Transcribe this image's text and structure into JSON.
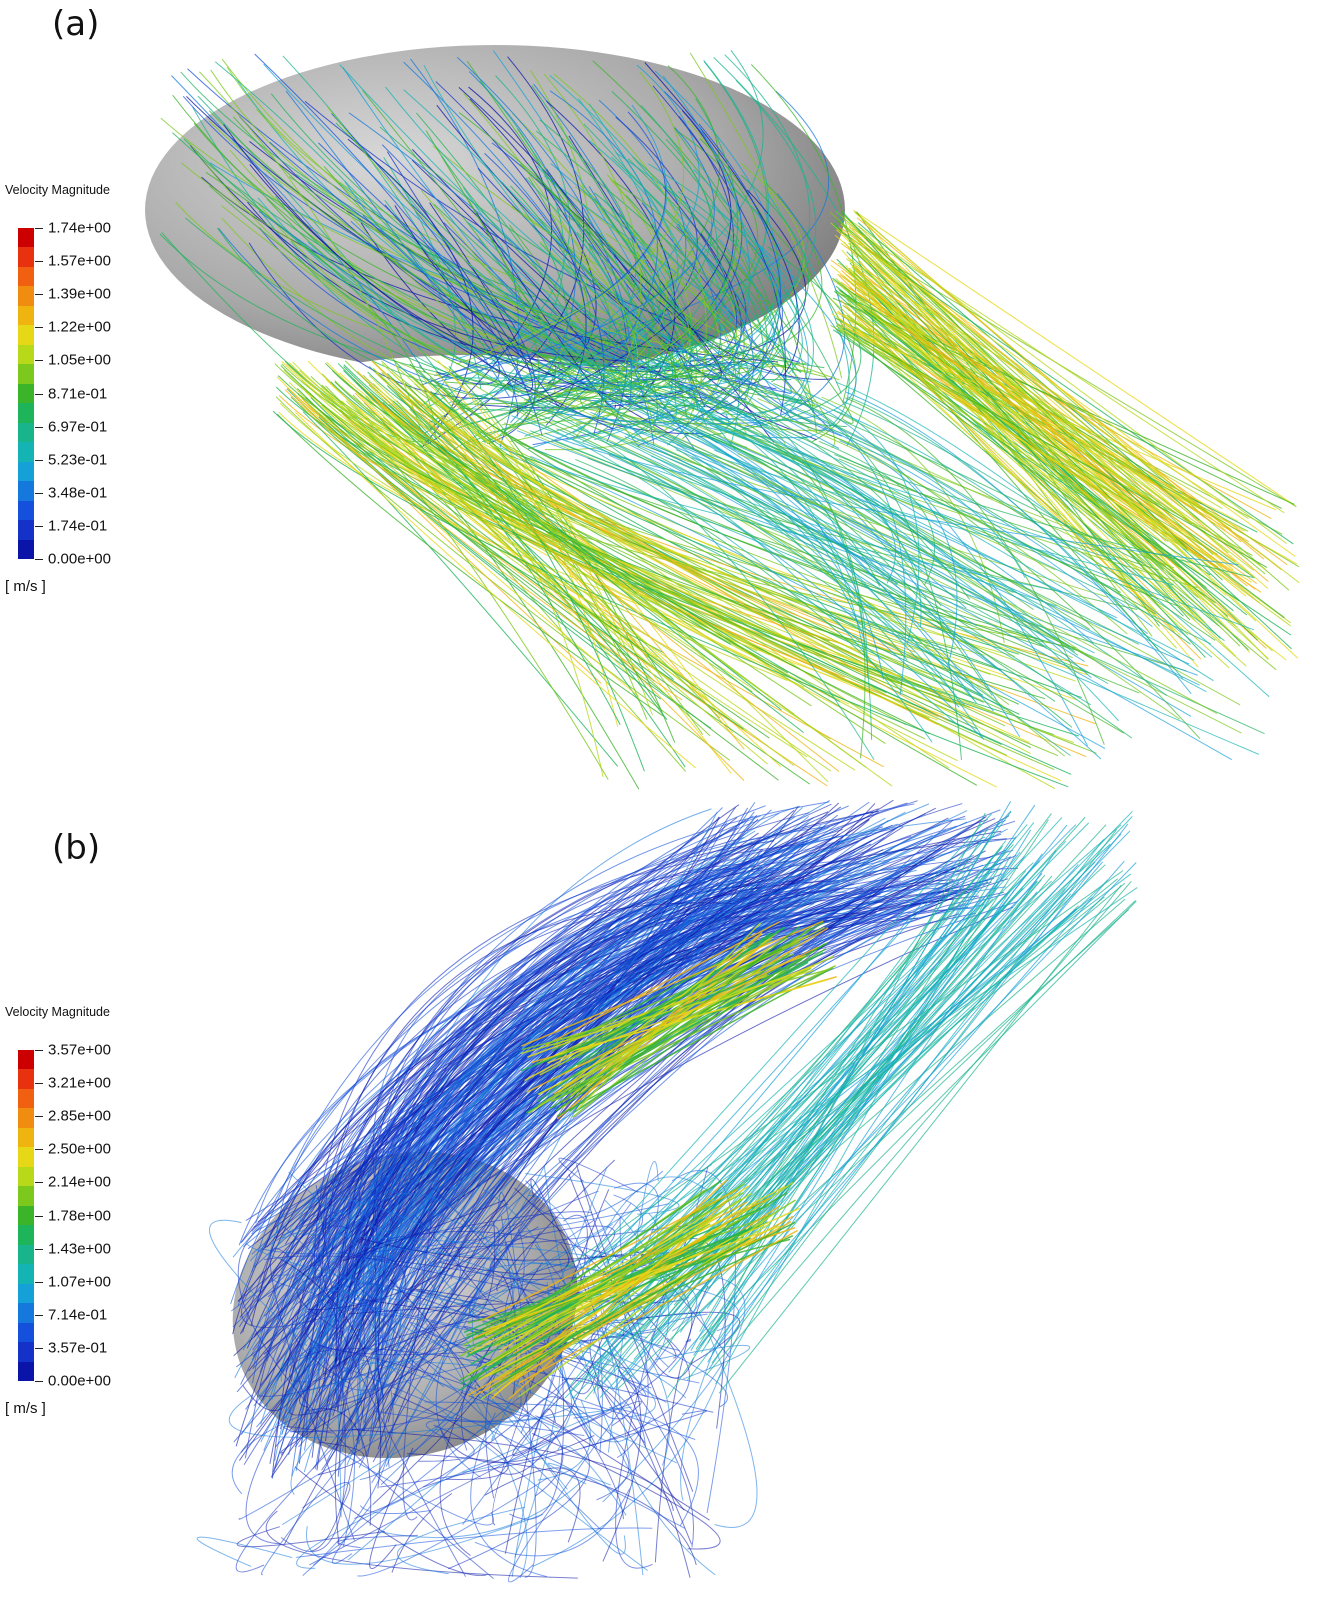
{
  "panels": [
    {
      "label": "(a)",
      "legend": {
        "title": "Velocity Magnitude",
        "ticks": [
          "1.74e+00",
          "1.57e+00",
          "1.39e+00",
          "1.22e+00",
          "1.05e+00",
          "8.71e-01",
          "6.97e-01",
          "5.23e-01",
          "3.48e-01",
          "1.74e-01",
          "0.00e+00"
        ],
        "unit": "[ m/s ]"
      }
    },
    {
      "label": "(b)",
      "legend": {
        "title": "Velocity Magnitude",
        "ticks": [
          "3.57e+00",
          "3.21e+00",
          "2.85e+00",
          "2.50e+00",
          "2.14e+00",
          "1.78e+00",
          "1.43e+00",
          "1.07e+00",
          "7.14e-01",
          "3.57e-01",
          "0.00e+00"
        ],
        "unit": "[ m/s ]"
      }
    }
  ],
  "colormap": [
    "#cc0000",
    "#e8320f",
    "#f06010",
    "#f08c10",
    "#f0b410",
    "#e6d817",
    "#b8d81a",
    "#7cc81c",
    "#3cb42a",
    "#1eb45a",
    "#18b48c",
    "#14b4b4",
    "#16a0d8",
    "#1478dc",
    "#1450dc",
    "#1432c8",
    "#0a14a8"
  ],
  "surface_color": "#a9a9a9"
}
